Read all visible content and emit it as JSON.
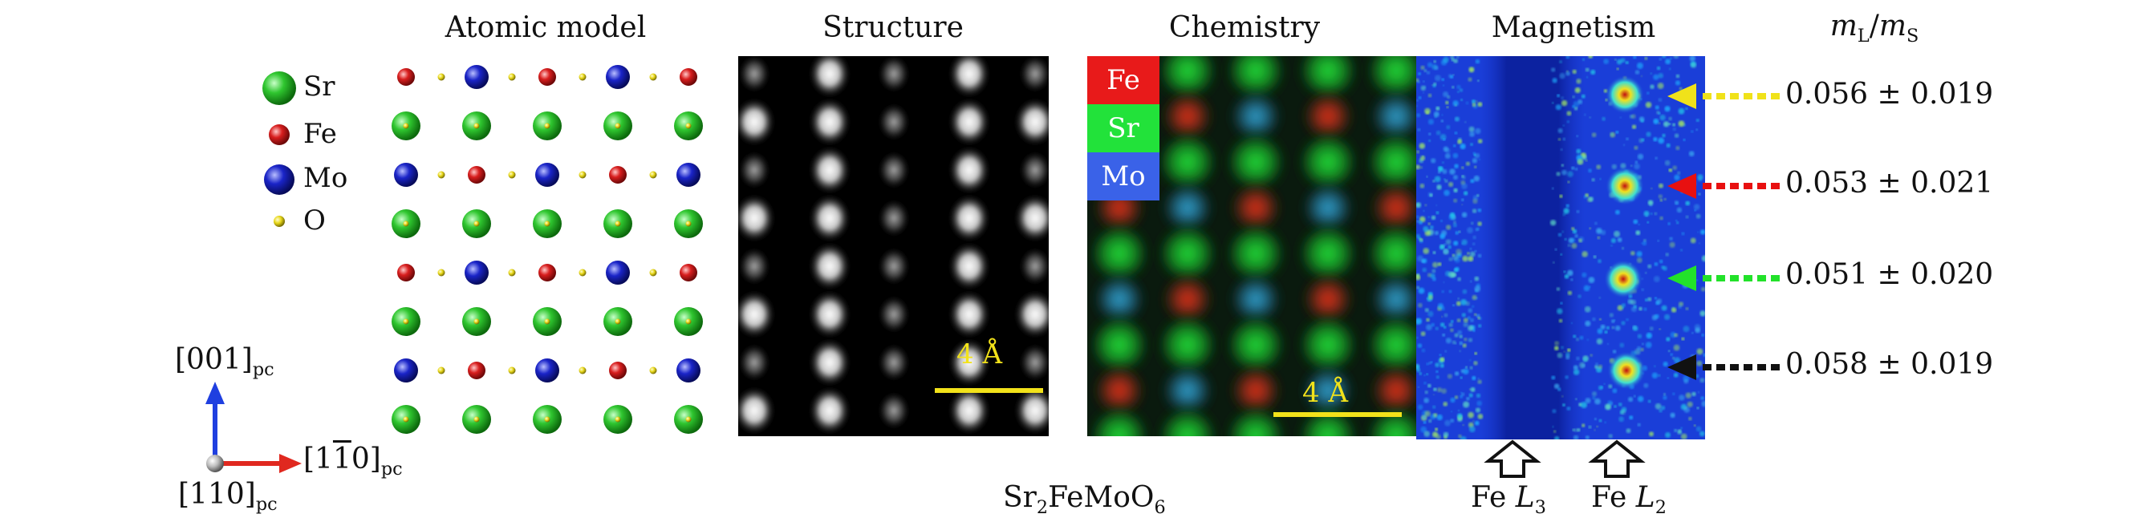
{
  "titles": {
    "atomic": "Atomic model",
    "structure": "Structure",
    "chemistry": "Chemistry",
    "magnetism": "Magnetism",
    "ratio_numerator": "m",
    "ratio_num_sub": "L",
    "ratio_slash": "/",
    "ratio_denominator": "m",
    "ratio_den_sub": "S"
  },
  "legend": [
    {
      "label": "Sr",
      "color": "#2fc62f"
    },
    {
      "label": "Fe",
      "color": "#d81e1e"
    },
    {
      "label": "Mo",
      "color": "#1a24c8"
    },
    {
      "label": "O",
      "color": "#e8d81a"
    }
  ],
  "axes": {
    "up_main": "[001]",
    "up_sub": "pc",
    "right_main_pre": "[1",
    "right_main_bar": "1",
    "right_main_post": "0]",
    "right_sub": "pc",
    "origin_main": "[110]",
    "origin_sub": "pc"
  },
  "scale_bar": {
    "structure": "4 Å",
    "chemistry": "4 Å"
  },
  "chem_legend": [
    {
      "label": "Fe",
      "color": "#e81a1a"
    },
    {
      "label": "Sr",
      "color": "#22e23a"
    },
    {
      "label": "Mo",
      "color": "#3a62e8"
    }
  ],
  "compound": {
    "p1": "Sr",
    "s1": "2",
    "p2": "FeMoO",
    "s2": "6"
  },
  "edges": [
    {
      "element": "Fe",
      "edge": "L",
      "sub": "3"
    },
    {
      "element": "Fe",
      "edge": "L",
      "sub": "2"
    }
  ],
  "ratios": [
    {
      "value": "0.056 ± 0.019",
      "color": "#f0e21a"
    },
    {
      "value": "0.053 ± 0.021",
      "color": "#e81010"
    },
    {
      "value": "0.051 ± 0.020",
      "color": "#22e22a"
    },
    {
      "value": "0.058 ± 0.019",
      "color": "#111111"
    }
  ]
}
